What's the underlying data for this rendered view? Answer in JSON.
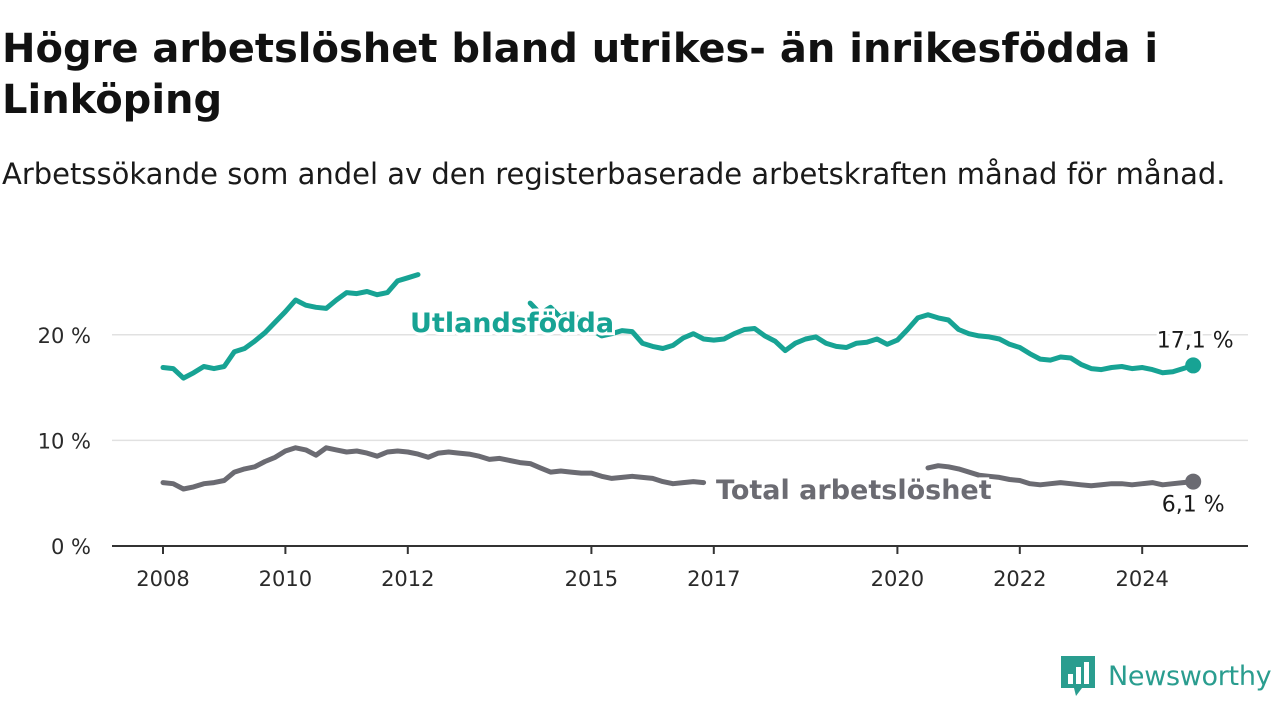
{
  "header": {
    "title": "Högre arbetslöshet bland utrikes- än inrikesfödda i Linköping",
    "subtitle": "Arbetssökande som andel av den registerbaserade arbetskraften månad för månad."
  },
  "brand": {
    "name": "Newsworthy",
    "icon": "newsworthy-logo-icon",
    "color": "#2a9d8f"
  },
  "chart_data": {
    "type": "line",
    "title": "Högre arbetslöshet bland utrikes- än inrikesfödda i Linköping",
    "subtitle": "Arbetssökande som andel av den registerbaserade arbetskraften månad för månad.",
    "xlabel": "",
    "ylabel": "",
    "xlim": [
      "2008-01",
      "2024-12"
    ],
    "ylim": [
      0,
      25
    ],
    "x_ticks": [
      "2008",
      "2010",
      "2012",
      "2015",
      "2017",
      "2020",
      "2022",
      "2024"
    ],
    "y_ticks": [
      {
        "value": 0,
        "label": "0 %"
      },
      {
        "value": 10,
        "label": "10 %"
      },
      {
        "value": 20,
        "label": "20 %"
      }
    ],
    "grid": "horizontal",
    "legend": "direct labels",
    "series": [
      {
        "name": "Utlandsfödda",
        "color": "#17a394",
        "end_label": "17,1 %",
        "end_value": 17.1,
        "points": [
          [
            "2008-01",
            16.9
          ],
          [
            "2008-03",
            16.8
          ],
          [
            "2008-05",
            15.9
          ],
          [
            "2008-07",
            16.4
          ],
          [
            "2008-09",
            17.0
          ],
          [
            "2008-11",
            16.8
          ],
          [
            "2009-01",
            17.0
          ],
          [
            "2009-03",
            18.4
          ],
          [
            "2009-05",
            18.7
          ],
          [
            "2009-07",
            19.4
          ],
          [
            "2009-09",
            20.2
          ],
          [
            "2009-11",
            21.2
          ],
          [
            "2010-01",
            22.2
          ],
          [
            "2010-03",
            23.3
          ],
          [
            "2010-05",
            22.8
          ],
          [
            "2010-07",
            22.6
          ],
          [
            "2010-09",
            22.5
          ],
          [
            "2010-11",
            23.3
          ],
          [
            "2011-01",
            24.0
          ],
          [
            "2011-03",
            23.9
          ],
          [
            "2011-05",
            24.1
          ],
          [
            "2011-07",
            23.8
          ],
          [
            "2011-09",
            24.0
          ],
          [
            "2011-11",
            25.1
          ],
          [
            "2012-01",
            25.4
          ],
          [
            "2012-03",
            25.7
          ],
          [
            "2014-01",
            23.0
          ],
          [
            "2014-03",
            22.0
          ],
          [
            "2014-05",
            22.6
          ],
          [
            "2014-07",
            21.6
          ],
          [
            "2014-09",
            22.2
          ],
          [
            "2014-11",
            21.2
          ],
          [
            "2015-01",
            20.5
          ],
          [
            "2015-03",
            19.9
          ],
          [
            "2015-05",
            20.1
          ],
          [
            "2015-07",
            20.4
          ],
          [
            "2015-09",
            20.3
          ],
          [
            "2015-11",
            19.2
          ],
          [
            "2016-01",
            18.9
          ],
          [
            "2016-03",
            18.7
          ],
          [
            "2016-05",
            19.0
          ],
          [
            "2016-07",
            19.7
          ],
          [
            "2016-09",
            20.1
          ],
          [
            "2016-11",
            19.6
          ],
          [
            "2017-01",
            19.5
          ],
          [
            "2017-03",
            19.6
          ],
          [
            "2017-05",
            20.1
          ],
          [
            "2017-07",
            20.5
          ],
          [
            "2017-09",
            20.6
          ],
          [
            "2017-11",
            19.9
          ],
          [
            "2018-01",
            19.4
          ],
          [
            "2018-03",
            18.5
          ],
          [
            "2018-05",
            19.2
          ],
          [
            "2018-07",
            19.6
          ],
          [
            "2018-09",
            19.8
          ],
          [
            "2018-11",
            19.2
          ],
          [
            "2019-01",
            18.9
          ],
          [
            "2019-03",
            18.8
          ],
          [
            "2019-05",
            19.2
          ],
          [
            "2019-07",
            19.3
          ],
          [
            "2019-09",
            19.6
          ],
          [
            "2019-11",
            19.1
          ],
          [
            "2020-01",
            19.5
          ],
          [
            "2020-03",
            20.5
          ],
          [
            "2020-05",
            21.6
          ],
          [
            "2020-07",
            21.9
          ],
          [
            "2020-09",
            21.6
          ],
          [
            "2020-11",
            21.4
          ],
          [
            "2021-01",
            20.5
          ],
          [
            "2021-03",
            20.1
          ],
          [
            "2021-05",
            19.9
          ],
          [
            "2021-07",
            19.8
          ],
          [
            "2021-09",
            19.6
          ],
          [
            "2021-11",
            19.1
          ],
          [
            "2022-01",
            18.8
          ],
          [
            "2022-03",
            18.2
          ],
          [
            "2022-05",
            17.7
          ],
          [
            "2022-07",
            17.6
          ],
          [
            "2022-09",
            17.9
          ],
          [
            "2022-11",
            17.8
          ],
          [
            "2023-01",
            17.2
          ],
          [
            "2023-03",
            16.8
          ],
          [
            "2023-05",
            16.7
          ],
          [
            "2023-07",
            16.9
          ],
          [
            "2023-09",
            17.0
          ],
          [
            "2023-11",
            16.8
          ],
          [
            "2024-01",
            16.9
          ],
          [
            "2024-03",
            16.7
          ],
          [
            "2024-05",
            16.4
          ],
          [
            "2024-07",
            16.5
          ],
          [
            "2024-09",
            16.8
          ],
          [
            "2024-11",
            17.1
          ]
        ]
      },
      {
        "name": "Total arbetslöshet",
        "color": "#6b6b72",
        "end_label": "6,1 %",
        "end_value": 6.1,
        "points": [
          [
            "2008-01",
            6.0
          ],
          [
            "2008-03",
            5.9
          ],
          [
            "2008-05",
            5.4
          ],
          [
            "2008-07",
            5.6
          ],
          [
            "2008-09",
            5.9
          ],
          [
            "2008-11",
            6.0
          ],
          [
            "2009-01",
            6.2
          ],
          [
            "2009-03",
            7.0
          ],
          [
            "2009-05",
            7.3
          ],
          [
            "2009-07",
            7.5
          ],
          [
            "2009-09",
            8.0
          ],
          [
            "2009-11",
            8.4
          ],
          [
            "2010-01",
            9.0
          ],
          [
            "2010-03",
            9.3
          ],
          [
            "2010-05",
            9.1
          ],
          [
            "2010-07",
            8.6
          ],
          [
            "2010-09",
            9.3
          ],
          [
            "2010-11",
            9.1
          ],
          [
            "2011-01",
            8.9
          ],
          [
            "2011-03",
            9.0
          ],
          [
            "2011-05",
            8.8
          ],
          [
            "2011-07",
            8.5
          ],
          [
            "2011-09",
            8.9
          ],
          [
            "2011-11",
            9.0
          ],
          [
            "2012-01",
            8.9
          ],
          [
            "2012-03",
            8.7
          ],
          [
            "2012-05",
            8.4
          ],
          [
            "2012-07",
            8.8
          ],
          [
            "2012-09",
            8.9
          ],
          [
            "2012-11",
            8.8
          ],
          [
            "2013-01",
            8.7
          ],
          [
            "2013-03",
            8.5
          ],
          [
            "2013-05",
            8.2
          ],
          [
            "2013-07",
            8.3
          ],
          [
            "2013-09",
            8.1
          ],
          [
            "2013-11",
            7.9
          ],
          [
            "2014-01",
            7.8
          ],
          [
            "2014-03",
            7.4
          ],
          [
            "2014-05",
            7.0
          ],
          [
            "2014-07",
            7.1
          ],
          [
            "2014-09",
            7.0
          ],
          [
            "2014-11",
            6.9
          ],
          [
            "2015-01",
            6.9
          ],
          [
            "2015-03",
            6.6
          ],
          [
            "2015-05",
            6.4
          ],
          [
            "2015-07",
            6.5
          ],
          [
            "2015-09",
            6.6
          ],
          [
            "2015-11",
            6.5
          ],
          [
            "2016-01",
            6.4
          ],
          [
            "2016-03",
            6.1
          ],
          [
            "2016-05",
            5.9
          ],
          [
            "2016-07",
            6.0
          ],
          [
            "2016-09",
            6.1
          ],
          [
            "2016-11",
            6.0
          ],
          [
            "2020-07",
            7.4
          ],
          [
            "2020-09",
            7.6
          ],
          [
            "2020-11",
            7.5
          ],
          [
            "2021-01",
            7.3
          ],
          [
            "2021-05",
            6.7
          ],
          [
            "2021-07",
            6.6
          ],
          [
            "2021-09",
            6.5
          ],
          [
            "2021-11",
            6.3
          ],
          [
            "2022-01",
            6.2
          ],
          [
            "2022-03",
            5.9
          ],
          [
            "2022-05",
            5.8
          ],
          [
            "2022-07",
            5.9
          ],
          [
            "2022-09",
            6.0
          ],
          [
            "2022-11",
            5.9
          ],
          [
            "2023-01",
            5.8
          ],
          [
            "2023-03",
            5.7
          ],
          [
            "2023-05",
            5.8
          ],
          [
            "2023-07",
            5.9
          ],
          [
            "2023-09",
            5.9
          ],
          [
            "2023-11",
            5.8
          ],
          [
            "2024-01",
            5.9
          ],
          [
            "2024-03",
            6.0
          ],
          [
            "2024-05",
            5.8
          ],
          [
            "2024-07",
            5.9
          ],
          [
            "2024-09",
            6.0
          ],
          [
            "2024-11",
            6.1
          ]
        ]
      }
    ]
  }
}
